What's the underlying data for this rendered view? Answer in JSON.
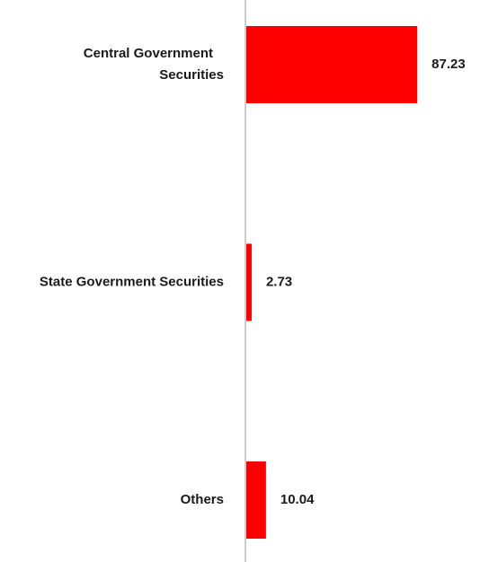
{
  "chart_data": {
    "type": "bar",
    "orientation": "horizontal",
    "categories": [
      [
        "Central Government",
        "Securities"
      ],
      [
        "State Government Securities"
      ],
      [
        "Others"
      ]
    ],
    "values": [
      87.23,
      2.73,
      10.04
    ],
    "value_labels": [
      "87.23",
      "2.73",
      "10.04"
    ],
    "xlim": [
      0,
      100
    ],
    "bar_color": "#ff0000",
    "axis_color": "#cccccc",
    "grid": false,
    "legend": "none"
  }
}
